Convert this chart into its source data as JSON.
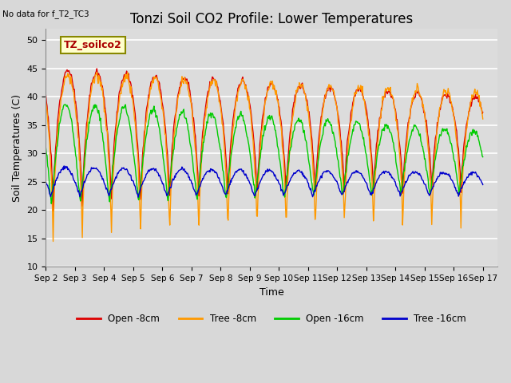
{
  "title": "Tonzi Soil CO2 Profile: Lower Temperatures",
  "subtitle": "No data for f_T2_TC3",
  "xlabel": "Time",
  "ylabel": "Soil Temperatures (C)",
  "ylim": [
    10,
    52
  ],
  "xlim_days": 15.5,
  "bg_color": "#dcdcdc",
  "grid_color": "white",
  "legend_label": "TZ_soilco2",
  "series_labels": [
    "Open -8cm",
    "Tree -8cm",
    "Open -16cm",
    "Tree -16cm"
  ],
  "series_colors": [
    "#dd0000",
    "#ff9900",
    "#00cc00",
    "#0000cc"
  ],
  "xtick_labels": [
    "Sep 2",
    "Sep 3",
    "Sep 4",
    "Sep 5",
    "Sep 6",
    "Sep 7",
    "Sep 8",
    "Sep 9",
    "Sep 10",
    "Sep 11",
    "Sep 12",
    "Sep 13",
    "Sep 14",
    "Sep 15",
    "Sep 16",
    "Sep 17"
  ],
  "n_days": 15,
  "pts_per_day": 48
}
